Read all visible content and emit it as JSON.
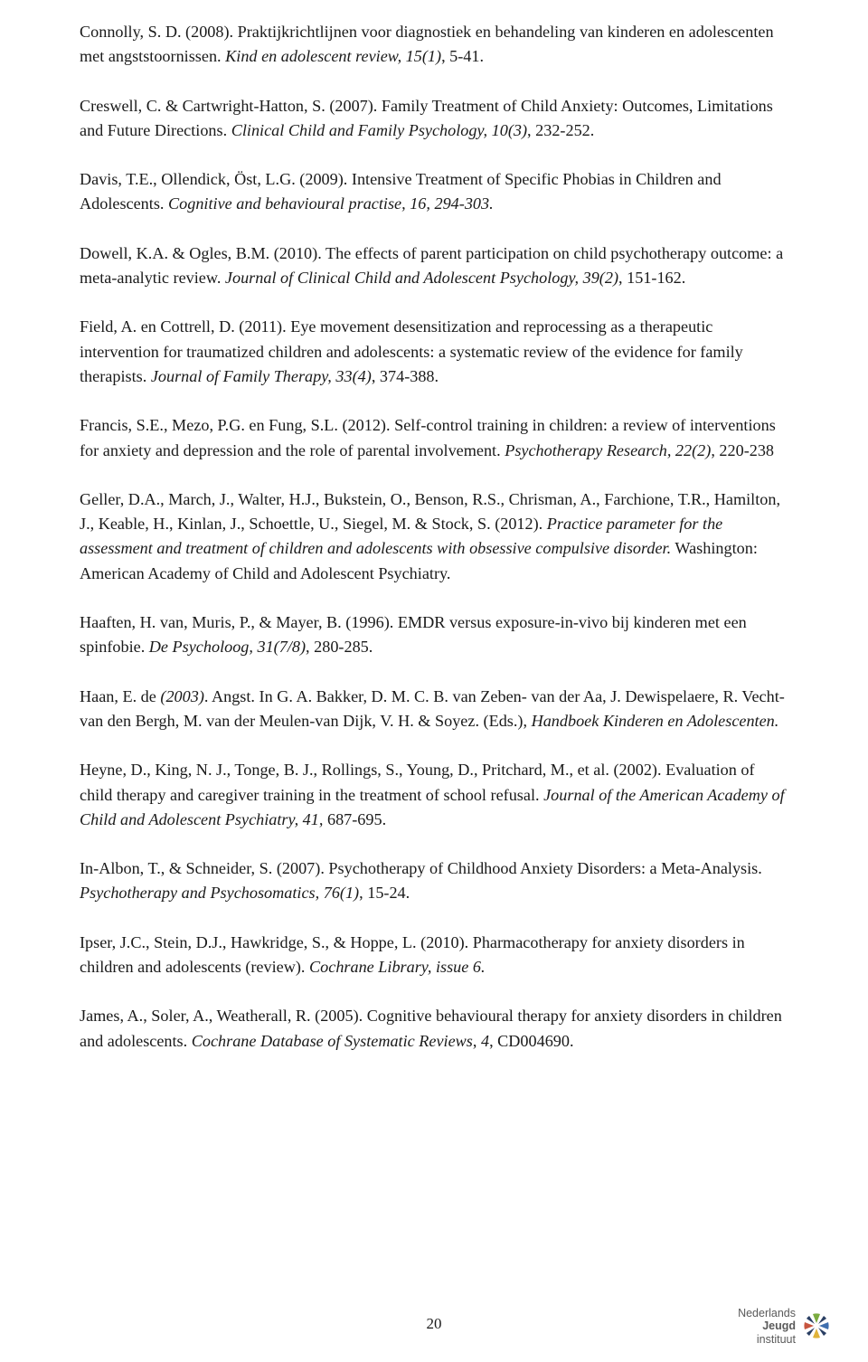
{
  "page_number": "20",
  "logo": {
    "line1": "Nederlands",
    "line2": "Jeugd",
    "line3": "instituut"
  },
  "refs": [
    {
      "pre": "Connolly, S. D. (2008). Praktijkrichtlijnen voor diagnostiek en behandeling van kinderen en adolescenten met angststoornissen. ",
      "it": "Kind en adolescent review, 15(1)",
      "post": ", 5-41."
    },
    {
      "pre": "Creswell, C. & Cartwright-Hatton, S. (2007). Family Treatment of Child Anxiety: Outcomes, Limitations and Future Directions. ",
      "it": "Clinical Child and Family Psychology, 10(3)",
      "post": ", 232-252."
    },
    {
      "pre": "Davis, T.E., Ollendick, Öst, L.G. (2009). Intensive Treatment of Specific Phobias in Children and Adolescents. ",
      "it": "Cognitive and behavioural practise, 16, 294-303.",
      "post": ""
    },
    {
      "pre": "Dowell, K.A. & Ogles, B.M. (2010). The effects of parent participation on child psychotherapy outcome: a meta-analytic review. ",
      "it": "Journal of Clinical Child and Adolescent Psychology, 39(2)",
      "post": ", 151-162."
    },
    {
      "pre": "Field, A. en Cottrell, D. (2011). Eye movement desensitization and reprocessing as a therapeutic intervention for traumatized children and adolescents: a systematic review of the evidence for family therapists. ",
      "it": "Journal of Family Therapy, 33(4)",
      "post": ", 374-388."
    },
    {
      "pre": "Francis, S.E., Mezo, P.G. en Fung, S.L. (2012). Self-control training in children: a review of interventions for anxiety and depression and the role of parental involvement. ",
      "it": "Psychotherapy Research, 22(2)",
      "post": ", 220-238"
    },
    {
      "pre": "Geller, D.A., March, J., Walter, H.J., Bukstein, O., Benson, R.S., Chrisman, A., Farchione, T.R., Hamilton, J., Keable, H., Kinlan, J., Schoettle, U., Siegel, M. & Stock, S. (2012). ",
      "it": "Practice parameter for the assessment and treatment of children and adolescents with obsessive compulsive disorder.",
      "post": " Washington: American Academy of Child and Adolescent Psychiatry."
    },
    {
      "pre": "Haaften, H. van, Muris, P., & Mayer, B. (1996). EMDR versus exposure-in-vivo bij kinderen met een spinfobie. ",
      "it": "De Psycholoog, 31(7/8)",
      "post": ", 280-285."
    },
    {
      "pre": "Haan, E. de ",
      "it": "(2003)",
      "post": ". Angst. In G. A. Bakker, D. M. C. B. van Zeben- van der Aa, J. Dewispelaere, R. Vecht-van den Bergh, M. van der Meulen-van Dijk, V. H. & Soyez. (Eds.), ",
      "it2": "Handboek Kinderen en Adolescenten.",
      "post2": ""
    },
    {
      "pre": "Heyne, D., King, N. J., Tonge, B. J., Rollings, S., Young, D., Pritchard, M., et al. (2002). Evaluation of child therapy and caregiver training in the treatment of school refusal. ",
      "it": "Journal of the American Academy of Child and Adolescent Psychiatry, 41,",
      "post": " 687-695."
    },
    {
      "pre": "In-Albon, T., & Schneider, S. (2007). Psychotherapy of Childhood Anxiety Disorders: a Meta-Analysis. ",
      "it": "Psychotherapy and Psychosomatics, 76(1)",
      "post": ", 15-24."
    },
    {
      "pre": "Ipser, J.C., Stein, D.J., Hawkridge, S., & Hoppe, L. (2010). Pharmacotherapy for anxiety disorders in children and adolescents (review). ",
      "it": "Cochrane Library, issue 6.",
      "post": ""
    },
    {
      "pre": "James, A., Soler, A., Weatherall, R. (2005). Cognitive behavioural therapy for anxiety disorders in children and adolescents. ",
      "it": "Cochrane Database of Systematic Reviews",
      "post": ", ",
      "it2": "4",
      "post2": ", CD004690."
    }
  ],
  "logo_colors": {
    "green": "#7aab3f",
    "blue": "#3f6fae",
    "yellow": "#e0b33a",
    "red": "#c7553f",
    "navy": "#2a3f63"
  }
}
